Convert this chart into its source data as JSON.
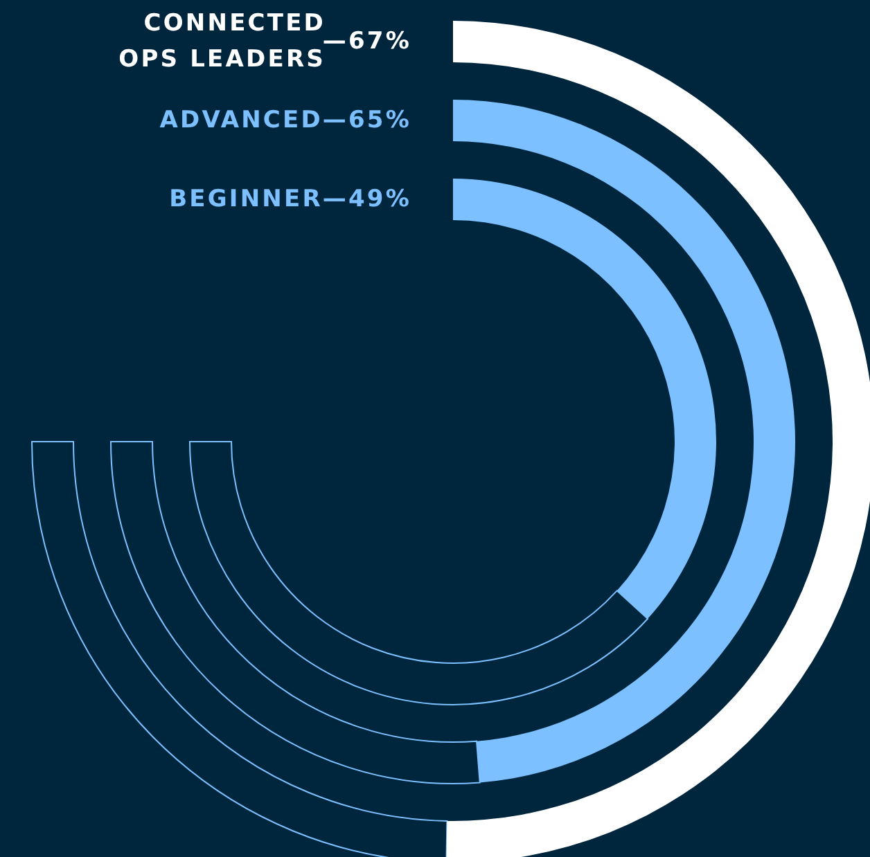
{
  "chart_data": {
    "type": "other",
    "categories": [
      "CONNECTED OPS LEADERS",
      "ADVANCED",
      "BEGINNER"
    ],
    "values": [
      67,
      65,
      49
    ],
    "value_labels": [
      "—67%",
      "—65%",
      "—49%"
    ],
    "colors": [
      "#ffffff",
      "#7cc0ff",
      "#7cc0ff"
    ]
  }
}
